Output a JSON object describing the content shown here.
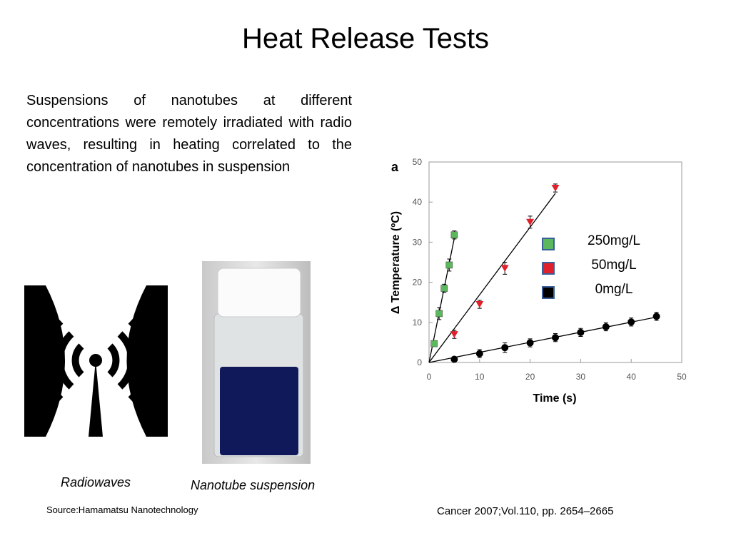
{
  "slide": {
    "title": "Heat Release Tests",
    "body": "Suspensions of nanotubes at different concentrations were remotely irradiated with radio waves, resulting in heating correlated to the concentration of nanotubes in suspension",
    "captions": [
      "Radiowaves",
      "Nanotube suspension"
    ],
    "source": "Source:Hamamatsu Nanotechnology",
    "citation": "Cancer 2007;Vol.110, pp. 2654–2665"
  },
  "chart_data": {
    "type": "scatter",
    "panel_label": "a",
    "x_label": "Time (s)",
    "y_label": "Δ Temperature (ºC)",
    "xlim": [
      0,
      50
    ],
    "xticks": [
      0,
      10,
      20,
      30,
      40,
      50
    ],
    "ylim": [
      0,
      50
    ],
    "yticks": [
      0,
      10,
      20,
      30,
      40,
      50
    ],
    "series": [
      {
        "name": "250mg/L",
        "color": "#5cb85c",
        "marker": "square",
        "x": [
          1,
          2,
          3,
          4,
          5
        ],
        "values": [
          4.7,
          12.2,
          18.5,
          24.3,
          31.8
        ],
        "errors": [
          0.5,
          1.5,
          1,
          1.5,
          1
        ]
      },
      {
        "name": "50mg/L",
        "color": "#e0202a",
        "marker": "triangle",
        "x": [
          5,
          10,
          15,
          20,
          25
        ],
        "values": [
          7,
          14.5,
          23.5,
          35,
          43.5
        ],
        "errors": [
          1,
          1,
          1.5,
          1.5,
          1
        ]
      },
      {
        "name": "0mg/L",
        "color": "#000000",
        "marker": "circle",
        "x": [
          5,
          10,
          15,
          20,
          25,
          30,
          35,
          40,
          45
        ],
        "values": [
          0.8,
          2.2,
          3.7,
          4.9,
          6.2,
          7.5,
          8.9,
          10.1,
          11.5
        ],
        "errors": [
          0.5,
          1,
          1.2,
          1,
          1,
          1,
          1,
          1,
          1
        ]
      }
    ]
  }
}
